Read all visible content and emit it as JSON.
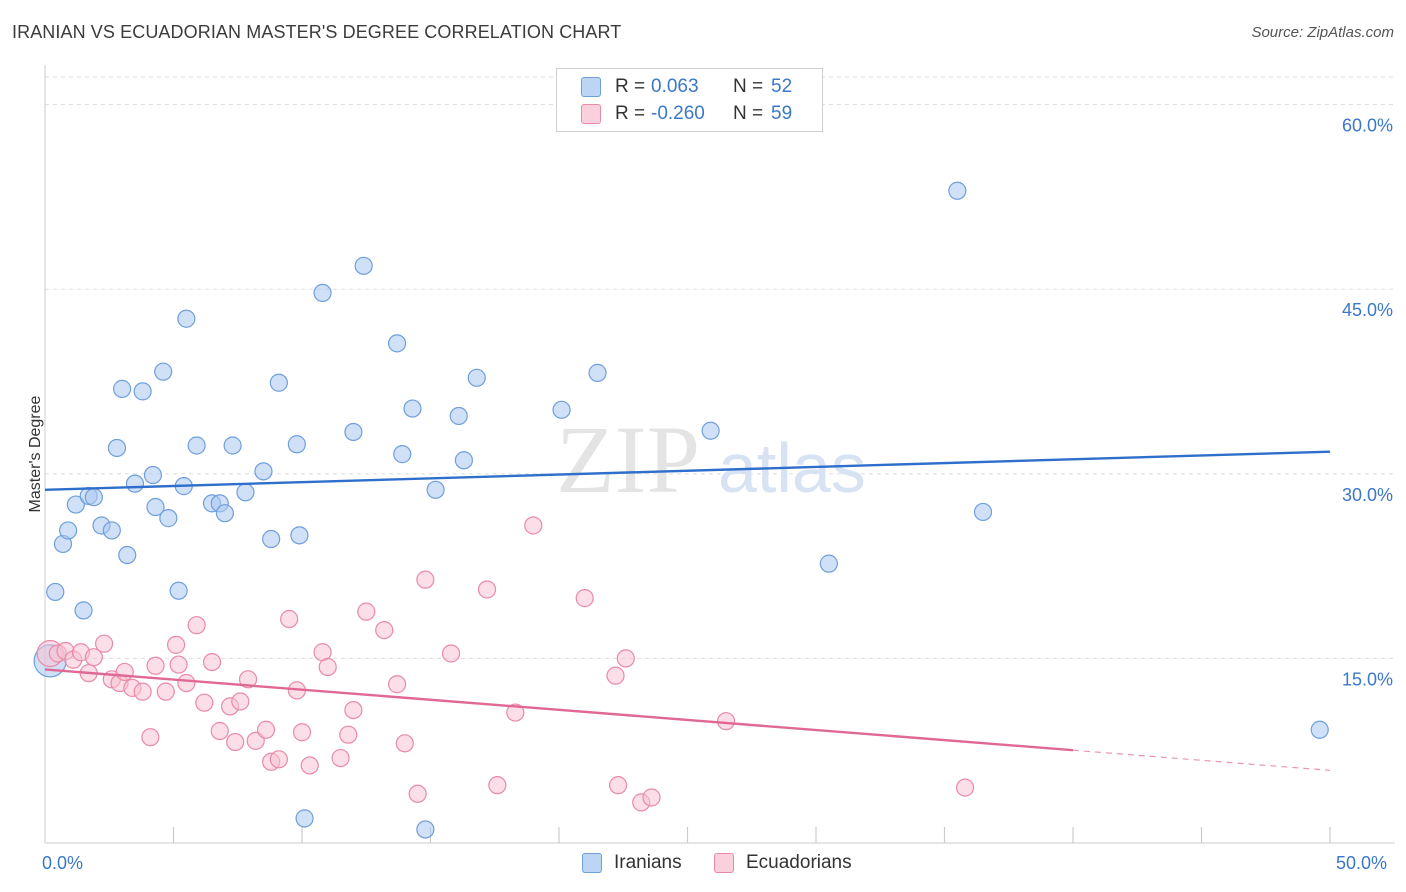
{
  "title": "IRANIAN VS ECUADORIAN MASTER'S DEGREE CORRELATION CHART",
  "source": "Source: ZipAtlas.com",
  "watermark": {
    "zip": "ZIP",
    "atlas": "atlas"
  },
  "legend": {
    "r_label": "R =",
    "n_label": "N =",
    "series": [
      {
        "name": "Iranians",
        "r": "0.063",
        "n": "52",
        "color": "#a9c8f0",
        "border": "#6f9fdc"
      },
      {
        "name": "Ecuadorians",
        "r": "-0.260",
        "n": "59",
        "color": "#f8c3d3",
        "border": "#e98aa8"
      }
    ]
  },
  "axes": {
    "x_min_label": "0.0%",
    "x_max_label": "50.0%",
    "y_ticks": [
      "15.0%",
      "30.0%",
      "45.0%",
      "60.0%"
    ]
  },
  "chart_data": {
    "type": "scatter",
    "title": "IRANIAN VS ECUADORIAN MASTER'S DEGREE CORRELATION CHART",
    "xlabel": "",
    "ylabel": "Master's Degree",
    "xlim": [
      0,
      50
    ],
    "ylim": [
      0,
      62
    ],
    "y_ticks": [
      15,
      30,
      45,
      60
    ],
    "series": [
      {
        "name": "Iranians",
        "color": "#a9c8f0",
        "stroke": "#6f9fdc",
        "line_color": "#2f6fcc",
        "trend": {
          "x": [
            0,
            50
          ],
          "y": [
            28.7,
            31.8
          ],
          "solid_to": 50
        },
        "points": [
          [
            0.2,
            14.8
          ],
          [
            0.4,
            20.4
          ],
          [
            0.7,
            24.3
          ],
          [
            0.9,
            25.4
          ],
          [
            1.2,
            27.5
          ],
          [
            1.5,
            18.9
          ],
          [
            1.7,
            28.2
          ],
          [
            1.9,
            28.1
          ],
          [
            2.2,
            25.8
          ],
          [
            2.6,
            25.4
          ],
          [
            2.8,
            32.1
          ],
          [
            3.0,
            36.9
          ],
          [
            3.2,
            23.4
          ],
          [
            3.5,
            29.2
          ],
          [
            3.8,
            36.7
          ],
          [
            4.2,
            29.9
          ],
          [
            4.3,
            27.3
          ],
          [
            4.6,
            38.3
          ],
          [
            4.8,
            26.4
          ],
          [
            5.2,
            20.5
          ],
          [
            5.4,
            29.0
          ],
          [
            5.5,
            42.6
          ],
          [
            5.9,
            32.3
          ],
          [
            6.5,
            27.6
          ],
          [
            6.8,
            27.6
          ],
          [
            7.0,
            26.8
          ],
          [
            7.3,
            32.3
          ],
          [
            7.8,
            28.5
          ],
          [
            8.5,
            30.2
          ],
          [
            8.8,
            24.7
          ],
          [
            9.1,
            37.4
          ],
          [
            9.8,
            32.4
          ],
          [
            9.9,
            25.0
          ],
          [
            10.1,
            2.0
          ],
          [
            10.8,
            44.7
          ],
          [
            12.0,
            33.4
          ],
          [
            12.4,
            46.9
          ],
          [
            13.7,
            40.6
          ],
          [
            13.9,
            31.6
          ],
          [
            14.3,
            35.3
          ],
          [
            14.8,
            1.1
          ],
          [
            15.2,
            28.7
          ],
          [
            16.1,
            34.7
          ],
          [
            16.3,
            31.1
          ],
          [
            16.8,
            37.8
          ],
          [
            20.1,
            35.2
          ],
          [
            21.5,
            38.2
          ],
          [
            25.9,
            33.5
          ],
          [
            30.5,
            22.7
          ],
          [
            35.5,
            53.0
          ],
          [
            36.5,
            26.9
          ],
          [
            49.6,
            9.2
          ]
        ]
      },
      {
        "name": "Ecuadorians",
        "color": "#f8c3d3",
        "stroke": "#e98aa8",
        "line_color": "#e06895",
        "trend": {
          "x": [
            0,
            50
          ],
          "y": [
            14.1,
            5.9
          ],
          "solid_to": 40
        },
        "points": [
          [
            0.2,
            15.4
          ],
          [
            0.5,
            15.4
          ],
          [
            0.8,
            15.6
          ],
          [
            1.1,
            14.9
          ],
          [
            1.4,
            15.5
          ],
          [
            1.7,
            13.8
          ],
          [
            1.9,
            15.1
          ],
          [
            2.3,
            16.2
          ],
          [
            2.6,
            13.3
          ],
          [
            2.9,
            13.0
          ],
          [
            3.1,
            13.9
          ],
          [
            3.4,
            12.6
          ],
          [
            3.8,
            12.3
          ],
          [
            4.1,
            8.6
          ],
          [
            4.3,
            14.4
          ],
          [
            4.7,
            12.3
          ],
          [
            5.1,
            16.1
          ],
          [
            5.2,
            14.5
          ],
          [
            5.5,
            13.0
          ],
          [
            5.9,
            17.7
          ],
          [
            6.2,
            11.4
          ],
          [
            6.5,
            14.7
          ],
          [
            6.8,
            9.1
          ],
          [
            7.2,
            11.1
          ],
          [
            7.4,
            8.2
          ],
          [
            7.6,
            11.5
          ],
          [
            7.9,
            13.3
          ],
          [
            8.2,
            8.3
          ],
          [
            8.6,
            9.2
          ],
          [
            8.8,
            6.6
          ],
          [
            9.1,
            6.8
          ],
          [
            9.5,
            18.2
          ],
          [
            9.8,
            12.4
          ],
          [
            10.0,
            9.0
          ],
          [
            10.3,
            6.3
          ],
          [
            10.8,
            15.5
          ],
          [
            11.0,
            14.3
          ],
          [
            11.5,
            6.9
          ],
          [
            11.8,
            8.8
          ],
          [
            12.0,
            10.8
          ],
          [
            12.5,
            18.8
          ],
          [
            13.2,
            17.3
          ],
          [
            13.7,
            12.9
          ],
          [
            14.0,
            8.1
          ],
          [
            14.5,
            4.0
          ],
          [
            14.8,
            21.4
          ],
          [
            15.8,
            15.4
          ],
          [
            17.2,
            20.6
          ],
          [
            17.6,
            4.7
          ],
          [
            18.3,
            10.6
          ],
          [
            19.0,
            25.8
          ],
          [
            21.0,
            19.9
          ],
          [
            22.2,
            13.6
          ],
          [
            22.3,
            4.7
          ],
          [
            22.6,
            15.0
          ],
          [
            23.2,
            3.3
          ],
          [
            23.6,
            3.7
          ],
          [
            26.5,
            9.9
          ],
          [
            35.8,
            4.5
          ]
        ]
      }
    ]
  }
}
